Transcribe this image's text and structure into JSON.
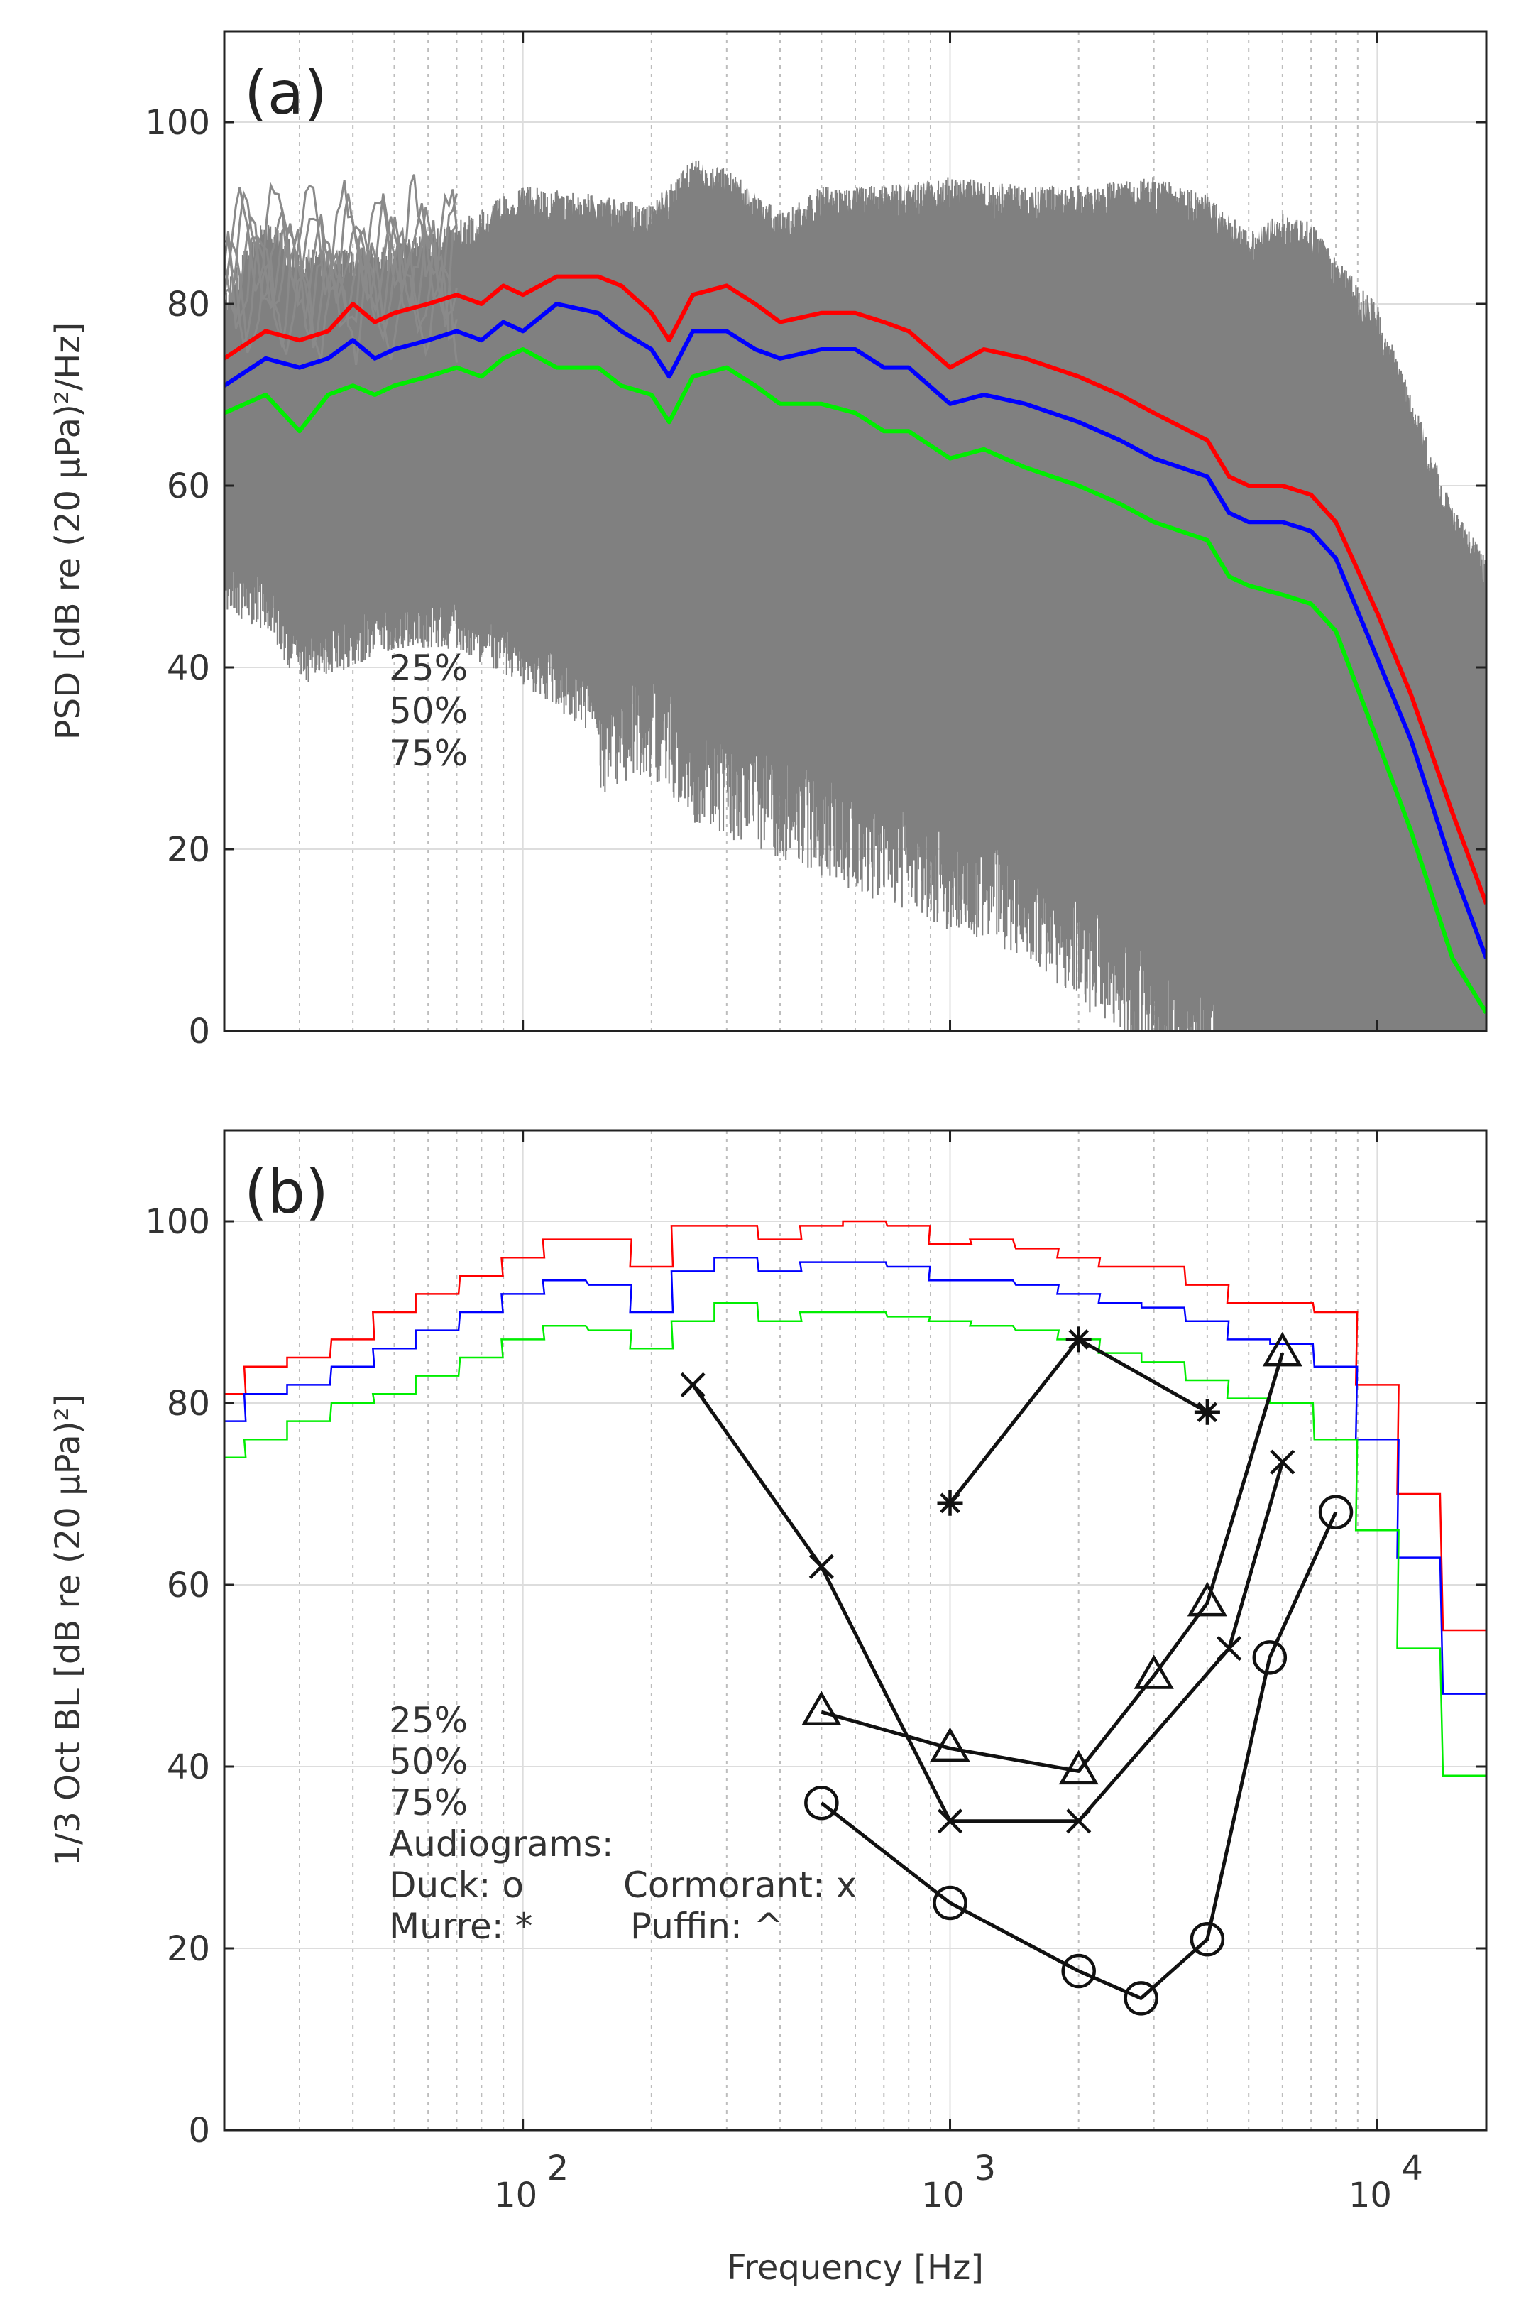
{
  "colors": {
    "p25": "#ff0000",
    "p50": "#0000ff",
    "p75": "#00ee00",
    "raw": "#808080",
    "audiogram": "#111111"
  },
  "xlabel_shared": "Frequency [Hz]",
  "chart_data": [
    {
      "type": "line",
      "panel_label": "(a)",
      "title": "",
      "xlabel": "Frequency [Hz]",
      "ylabel": "PSD [dB re (20 µPa)²/Hz]",
      "xscale": "log",
      "xlim": [
        20,
        18000
      ],
      "ylim": [
        0,
        110
      ],
      "yticks": [
        0,
        20,
        40,
        60,
        80,
        100
      ],
      "xticks": [
        {
          "value": 100,
          "base": "10",
          "exp": "2"
        },
        {
          "value": 1000,
          "base": "10",
          "exp": "3"
        },
        {
          "value": 10000,
          "base": "10",
          "exp": "4"
        }
      ],
      "grid": true,
      "legend_position": "left-middle",
      "legend": [
        {
          "label": "25%",
          "color_key": "p25"
        },
        {
          "label": "50%",
          "color_key": "p50"
        },
        {
          "label": "75%",
          "color_key": "p75"
        }
      ],
      "series": [
        {
          "name": "25%",
          "color_key": "p25",
          "x": [
            20,
            25,
            30,
            35,
            40,
            45,
            50,
            60,
            70,
            80,
            90,
            100,
            120,
            150,
            170,
            200,
            220,
            250,
            300,
            350,
            400,
            500,
            600,
            700,
            800,
            1000,
            1200,
            1500,
            2000,
            2500,
            3000,
            4000,
            4500,
            5000,
            6000,
            7000,
            8000,
            10000,
            12000,
            15000,
            18000
          ],
          "values": [
            74,
            77,
            76,
            77,
            80,
            78,
            79,
            80,
            81,
            80,
            82,
            81,
            83,
            83,
            82,
            79,
            76,
            81,
            82,
            80,
            78,
            79,
            79,
            78,
            77,
            73,
            75,
            74,
            72,
            70,
            68,
            65,
            61,
            60,
            60,
            59,
            56,
            46,
            37,
            24,
            14
          ]
        },
        {
          "name": "50%",
          "color_key": "p50",
          "x": [
            20,
            25,
            30,
            35,
            40,
            45,
            50,
            60,
            70,
            80,
            90,
            100,
            120,
            150,
            170,
            200,
            220,
            250,
            300,
            350,
            400,
            500,
            600,
            700,
            800,
            1000,
            1200,
            1500,
            2000,
            2500,
            3000,
            4000,
            4500,
            5000,
            6000,
            7000,
            8000,
            10000,
            12000,
            15000,
            18000
          ],
          "values": [
            71,
            74,
            73,
            74,
            76,
            74,
            75,
            76,
            77,
            76,
            78,
            77,
            80,
            79,
            77,
            75,
            72,
            77,
            77,
            75,
            74,
            75,
            75,
            73,
            73,
            69,
            70,
            69,
            67,
            65,
            63,
            61,
            57,
            56,
            56,
            55,
            52,
            41,
            32,
            18,
            8
          ]
        },
        {
          "name": "75%",
          "color_key": "p75",
          "x": [
            20,
            25,
            30,
            35,
            40,
            45,
            50,
            60,
            70,
            80,
            90,
            100,
            120,
            150,
            170,
            200,
            220,
            250,
            300,
            350,
            400,
            500,
            600,
            700,
            800,
            1000,
            1200,
            1500,
            2000,
            2500,
            3000,
            4000,
            4500,
            5000,
            6000,
            7000,
            8000,
            10000,
            12000,
            15000,
            18000
          ],
          "values": [
            68,
            70,
            66,
            70,
            71,
            70,
            71,
            72,
            73,
            72,
            74,
            75,
            73,
            73,
            71,
            70,
            67,
            72,
            73,
            71,
            69,
            69,
            68,
            66,
            66,
            63,
            64,
            62,
            60,
            58,
            56,
            54,
            50,
            49,
            48,
            47,
            44,
            32,
            22,
            8,
            2
          ]
        }
      ],
      "raw_band": {
        "description_hidden": true,
        "x": [
          20,
          25,
          30,
          40,
          50,
          70,
          100,
          150,
          200,
          250,
          300,
          400,
          500,
          700,
          1000,
          1500,
          2000,
          3000,
          4000,
          5000,
          6000,
          7000,
          8000,
          10000,
          12000,
          15000,
          18000
        ],
        "upper": [
          82,
          90,
          86,
          86,
          87,
          89,
          93,
          92,
          91,
          96,
          95,
          90,
          93,
          93,
          94,
          93,
          93,
          94,
          92,
          88,
          90,
          89,
          85,
          80,
          70,
          58,
          52
        ],
        "lower": [
          52,
          50,
          44,
          46,
          48,
          48,
          44,
          38,
          40,
          35,
          33,
          31,
          29,
          26,
          23,
          20,
          15,
          8,
          4,
          0,
          0,
          0,
          0,
          0,
          0,
          0,
          0
        ]
      }
    },
    {
      "type": "line",
      "panel_label": "(b)",
      "title": "",
      "xlabel": "Frequency [Hz]",
      "ylabel": "1/3 Oct BL [dB re (20 µPa)²]",
      "xscale": "log",
      "xlim": [
        20,
        18000
      ],
      "ylim": [
        0,
        110
      ],
      "yticks": [
        0,
        20,
        40,
        60,
        80,
        100
      ],
      "xticks": [
        {
          "value": 100,
          "base": "10",
          "exp": "2"
        },
        {
          "value": 1000,
          "base": "10",
          "exp": "3"
        },
        {
          "value": 10000,
          "base": "10",
          "exp": "4"
        }
      ],
      "grid": true,
      "legend_position": "bottom-left",
      "legend": [
        {
          "label": "25%",
          "color_key": "p25"
        },
        {
          "label": "50%",
          "color_key": "p50"
        },
        {
          "label": "75%",
          "color_key": "p75"
        }
      ],
      "audiogram_legend": {
        "title": "Audiograms:",
        "items": [
          "Duck: o",
          "Cormorant: x",
          "Murre: *",
          "Puffin: ^"
        ]
      },
      "band_centers": [
        20,
        25,
        31.5,
        40,
        50,
        63,
        80,
        100,
        125,
        160,
        200,
        250,
        315,
        400,
        500,
        630,
        800,
        1000,
        1250,
        1600,
        2000,
        2500,
        3150,
        4000,
        5000,
        6300,
        8000,
        10000,
        12500,
        16000
      ],
      "series": [
        {
          "name": "25%",
          "color_key": "p25",
          "values": [
            81,
            84,
            85,
            87,
            90,
            92,
            94,
            96,
            98,
            98,
            95,
            99.5,
            99.5,
            98,
            99.5,
            100,
            99.5,
            97.5,
            98,
            97,
            96,
            95,
            95,
            93,
            91,
            91,
            90,
            82,
            70,
            55
          ]
        },
        {
          "name": "50%",
          "color_key": "p50",
          "values": [
            78,
            81,
            82,
            84,
            86,
            88,
            90,
            92,
            93.5,
            93,
            90,
            94.5,
            96,
            94.5,
            95.5,
            95.5,
            95,
            93.5,
            93.5,
            93,
            92,
            91,
            90.5,
            89,
            87,
            86.5,
            84,
            76,
            63,
            48
          ]
        },
        {
          "name": "75%",
          "color_key": "p75",
          "values": [
            74,
            76,
            78,
            80,
            81,
            83,
            85,
            87,
            88.5,
            88,
            86,
            89,
            91,
            89,
            90,
            90,
            89.5,
            89,
            88.5,
            88,
            87,
            85.5,
            84.5,
            82.5,
            80.5,
            80,
            76,
            66,
            53,
            39
          ]
        }
      ],
      "audiograms": [
        {
          "name": "Duck",
          "marker": "circle",
          "x": [
            500,
            1000,
            2000,
            2800,
            4000,
            5600,
            8000
          ],
          "values": [
            36,
            25,
            17.5,
            14.5,
            21,
            52,
            68
          ]
        },
        {
          "name": "Cormorant",
          "marker": "x",
          "x": [
            250,
            500,
            1000,
            2000,
            4500,
            6000
          ],
          "values": [
            82,
            62,
            34,
            34,
            53,
            73.5
          ]
        },
        {
          "name": "Murre",
          "marker": "asterisk",
          "x": [
            1000,
            2000,
            4000
          ],
          "values": [
            69,
            87,
            79
          ]
        },
        {
          "name": "Puffin",
          "marker": "triangle",
          "x": [
            500,
            1000,
            2000,
            3000,
            4000,
            6000
          ],
          "values": [
            46,
            42,
            39.5,
            50,
            58,
            85.5
          ]
        }
      ]
    }
  ]
}
